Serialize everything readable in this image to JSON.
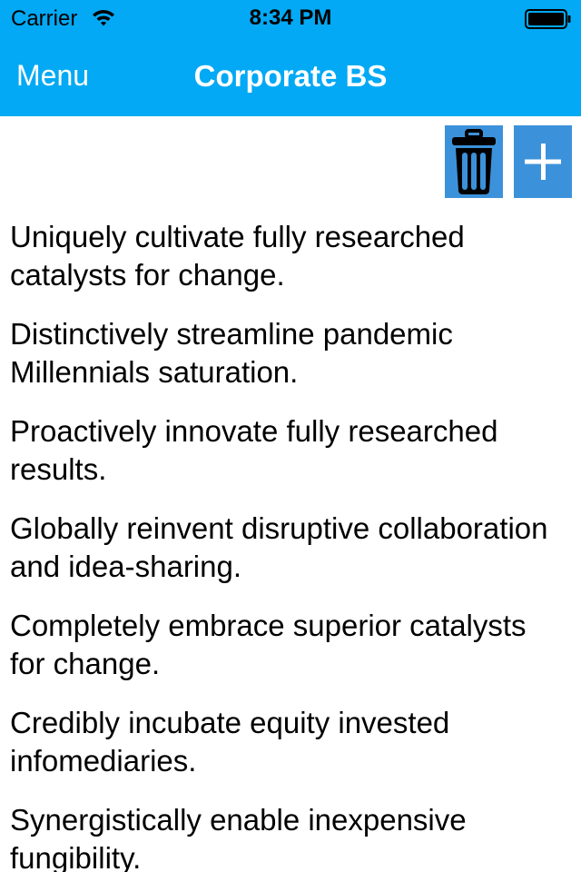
{
  "status_bar": {
    "carrier": "Carrier",
    "time": "8:34 PM",
    "wifi_icon": "wifi-icon",
    "battery_icon": "battery-icon"
  },
  "nav": {
    "menu_label": "Menu",
    "title": "Corporate BS",
    "background_color": "#03a9f4"
  },
  "toolbar": {
    "delete_icon": "trash-icon",
    "add_icon": "plus-icon",
    "button_color": "#3c92da"
  },
  "phrases": [
    "Uniquely cultivate fully researched catalysts for change.",
    "Distinctively streamline pandemic Millennials saturation.",
    "Proactively innovate fully researched results.",
    "Globally reinvent disruptive collaboration and idea-sharing.",
    "Completely embrace superior catalysts for change.",
    "Credibly incubate equity invested infomediaries.",
    "Synergistically enable inexpensive fungibility."
  ]
}
